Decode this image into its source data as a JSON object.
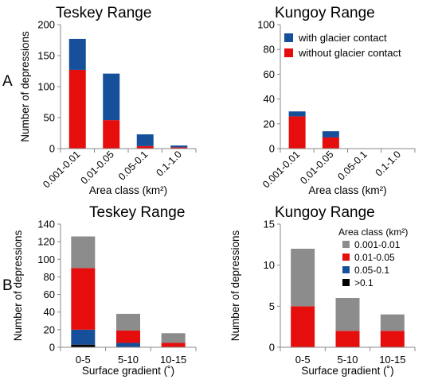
{
  "figure": {
    "row_labels": [
      "A",
      "B"
    ]
  },
  "colors": {
    "with_glacier": "#17509a",
    "without_glacier": "#e60d0d",
    "class_001_01": "#8c8c8c",
    "class_01_05": "#e60d0d",
    "class_05_1": "#17509a",
    "class_gt_01": "#000000",
    "axis": "#888888"
  },
  "chart_data": [
    {
      "id": "A-teskey",
      "type": "bar",
      "stacked": true,
      "title": "Teskey Range",
      "xlabel": "Area class (km²)",
      "ylabel": "Number of depressions",
      "categories": [
        "0.001-0.01",
        "0.01-0.05",
        "0.05-0.1",
        "0.1-1.0"
      ],
      "ylim": [
        0,
        200
      ],
      "yticks": [
        0,
        50,
        100,
        150,
        200
      ],
      "series": [
        {
          "name": "without glacier contact",
          "color": "#e60d0d",
          "values": [
            127,
            46,
            4,
            2
          ]
        },
        {
          "name": "with glacier contact",
          "color": "#17509a",
          "values": [
            50,
            75,
            19,
            3
          ]
        }
      ],
      "legend": "none"
    },
    {
      "id": "A-kungoy",
      "type": "bar",
      "stacked": true,
      "title": "Kungoy Range",
      "xlabel": "Area class (km²)",
      "ylabel": "",
      "categories": [
        "0.001-0.01",
        "0.01-0.05",
        "0.05-0.1",
        "0.1-1.0"
      ],
      "ylim": [
        0,
        100
      ],
      "yticks": [
        0,
        20,
        40,
        60,
        80,
        100
      ],
      "series": [
        {
          "name": "without glacier contact",
          "color": "#e60d0d",
          "values": [
            26,
            9,
            0,
            0
          ]
        },
        {
          "name": "with glacier contact",
          "color": "#17509a",
          "values": [
            4,
            5,
            0,
            0
          ]
        }
      ],
      "legend": "top-right",
      "legend_entries": [
        {
          "label": "with glacier contact",
          "color": "#17509a"
        },
        {
          "label": "without glacier contact",
          "color": "#e60d0d"
        }
      ]
    },
    {
      "id": "B-teskey",
      "type": "bar",
      "stacked": true,
      "title": "Teskey Range",
      "xlabel": "Surface gradient (˚)",
      "ylabel": "Number of depressions",
      "categories": [
        "0-5",
        "5-10",
        "10-15"
      ],
      "ylim": [
        0,
        140
      ],
      "yticks": [
        0,
        20,
        40,
        60,
        80,
        100,
        120,
        140
      ],
      "series": [
        {
          "name": ">0.1",
          "color": "#000000",
          "values": [
            3,
            0,
            0
          ]
        },
        {
          "name": "0.05-0.1",
          "color": "#17509a",
          "values": [
            17,
            5,
            0
          ]
        },
        {
          "name": "0.01-0.05",
          "color": "#e60d0d",
          "values": [
            70,
            14,
            5
          ]
        },
        {
          "name": "0.001-0.01",
          "color": "#8c8c8c",
          "values": [
            36,
            19,
            11
          ]
        }
      ],
      "legend": "none"
    },
    {
      "id": "B-kungoy",
      "type": "bar",
      "stacked": true,
      "title": "Kungoy Range",
      "xlabel": "Surface gradient (˚)",
      "ylabel": "Number of depressions",
      "categories": [
        "0-5",
        "5-10",
        "10-15"
      ],
      "ylim": [
        0,
        15
      ],
      "yticks": [
        0,
        5,
        10,
        15
      ],
      "series": [
        {
          "name": "0.01-0.05",
          "color": "#e60d0d",
          "values": [
            5,
            2,
            2
          ]
        },
        {
          "name": "0.001-0.01",
          "color": "#8c8c8c",
          "values": [
            7,
            4,
            2
          ]
        }
      ],
      "legend": "top-right",
      "legend_title": "Area class (km²)",
      "legend_entries": [
        {
          "label": "0.001-0.01",
          "color": "#8c8c8c"
        },
        {
          "label": "0.01-0.05",
          "color": "#e60d0d"
        },
        {
          "label": "0.05-0.1",
          "color": "#17509a"
        },
        {
          "label": ">0.1",
          "color": "#000000"
        }
      ]
    }
  ]
}
